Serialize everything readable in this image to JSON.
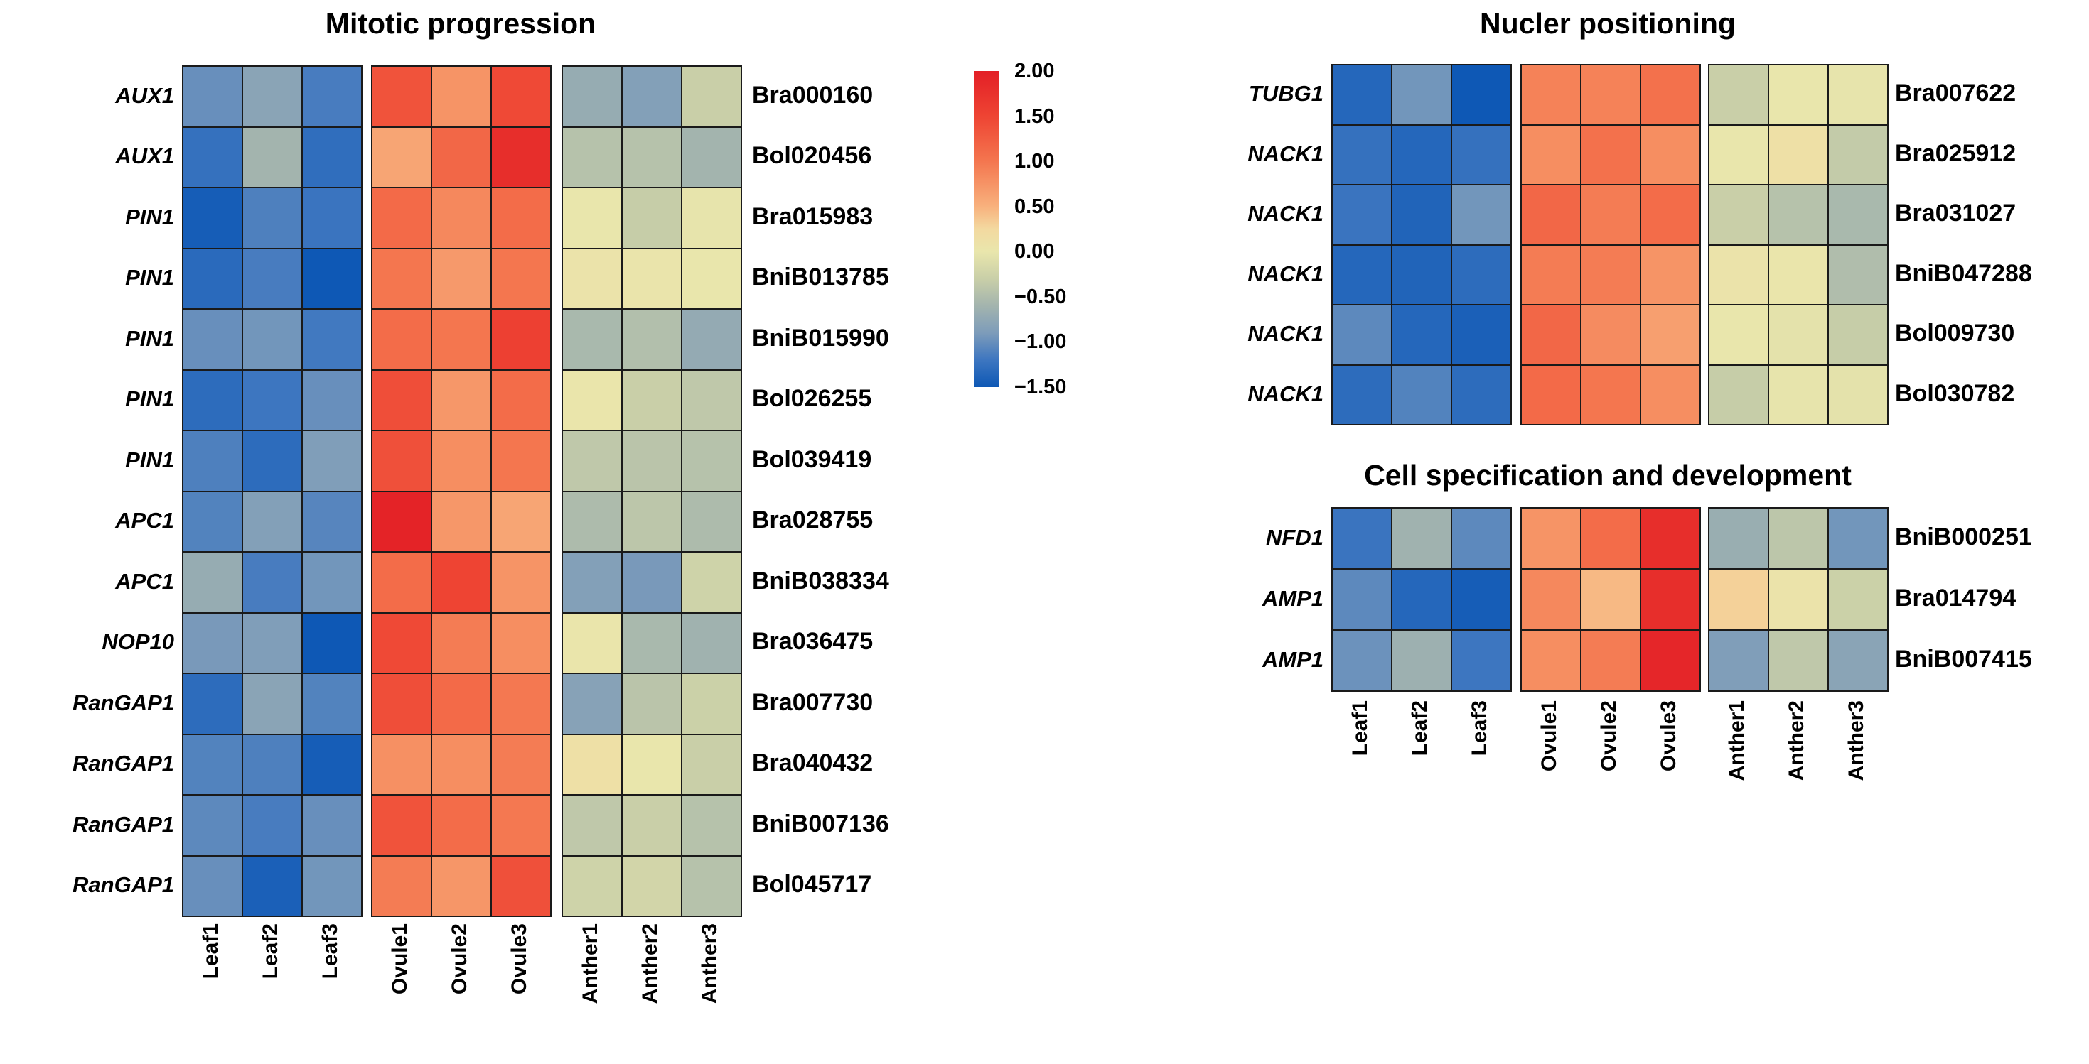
{
  "figure": {
    "background": "#ffffff",
    "text_color": "#000000",
    "grid_line_color": "#1a1a1a"
  },
  "colorbar": {
    "min": -1.5,
    "max": 2.0,
    "ticks": [
      "2.00",
      "1.50",
      "1.00",
      "0.50",
      "0.00",
      "−0.50",
      "−1.00",
      "−1.50"
    ]
  },
  "colormap_stops": [
    {
      "v": -1.5,
      "c": "#0e58b5"
    },
    {
      "v": -1.2,
      "c": "#3d76c0"
    },
    {
      "v": -0.9,
      "c": "#7d9cba"
    },
    {
      "v": -0.6,
      "c": "#a3b4ae"
    },
    {
      "v": -0.3,
      "c": "#c9cfa8"
    },
    {
      "v": 0.0,
      "c": "#e9e6ac"
    },
    {
      "v": 0.25,
      "c": "#f3d9a0"
    },
    {
      "v": 0.5,
      "c": "#f8b17d"
    },
    {
      "v": 1.0,
      "c": "#f4764f"
    },
    {
      "v": 1.5,
      "c": "#ee4433"
    },
    {
      "v": 2.0,
      "c": "#e31f26"
    }
  ],
  "chart_data": [
    {
      "type": "heatmap",
      "title": "Mitotic progression",
      "columns": [
        "Leaf1",
        "Leaf2",
        "Leaf3",
        "Ovule1",
        "Ovule2",
        "Ovule3",
        "Anther1",
        "Anther2",
        "Anther3"
      ],
      "column_groups": [
        "Leaf",
        "Ovule",
        "Anther"
      ],
      "value_range": [
        -1.5,
        2.0
      ],
      "rows": [
        {
          "gene": "AUX1",
          "id": "Bra000160",
          "values": [
            -1.0,
            -0.8,
            -1.15,
            1.35,
            0.75,
            1.45,
            -0.7,
            -0.85,
            -0.3
          ]
        },
        {
          "gene": "AUX1",
          "id": "Bol020456",
          "values": [
            -1.25,
            -0.6,
            -1.28,
            0.6,
            1.15,
            1.8,
            -0.45,
            -0.45,
            -0.6
          ]
        },
        {
          "gene": "PIN1",
          "id": "Bra015983",
          "values": [
            -1.45,
            -1.12,
            -1.22,
            1.12,
            0.85,
            1.1,
            0.0,
            -0.32,
            -0.02
          ]
        },
        {
          "gene": "PIN1",
          "id": "BniB013785",
          "values": [
            -1.32,
            -1.15,
            -1.5,
            1.0,
            0.7,
            1.0,
            0.05,
            0.03,
            0.0
          ]
        },
        {
          "gene": "PIN1",
          "id": "BniB015990",
          "values": [
            -1.0,
            -0.95,
            -1.18,
            1.1,
            1.0,
            1.55,
            -0.55,
            -0.48,
            -0.72
          ]
        },
        {
          "gene": "PIN1",
          "id": "Bol026255",
          "values": [
            -1.3,
            -1.2,
            -1.0,
            1.4,
            0.72,
            1.1,
            0.02,
            -0.3,
            -0.38
          ]
        },
        {
          "gene": "PIN1",
          "id": "Bol039419",
          "values": [
            -1.12,
            -1.3,
            -0.88,
            1.38,
            0.8,
            1.0,
            -0.38,
            -0.42,
            -0.45
          ]
        },
        {
          "gene": "APC1",
          "id": "Bra028755",
          "values": [
            -1.1,
            -0.85,
            -1.08,
            1.95,
            0.72,
            0.6,
            -0.52,
            -0.4,
            -0.52
          ]
        },
        {
          "gene": "APC1",
          "id": "BniB038334",
          "values": [
            -0.7,
            -1.15,
            -0.95,
            1.1,
            1.5,
            0.75,
            -0.85,
            -0.92,
            -0.25
          ]
        },
        {
          "gene": "NOP10",
          "id": "Bra036475",
          "values": [
            -0.92,
            -0.88,
            -1.5,
            1.45,
            0.95,
            0.8,
            0.02,
            -0.55,
            -0.62
          ]
        },
        {
          "gene": "RanGAP1",
          "id": "Bra007730",
          "values": [
            -1.3,
            -0.8,
            -1.1,
            1.4,
            1.12,
            0.98,
            -0.82,
            -0.42,
            -0.28
          ]
        },
        {
          "gene": "RanGAP1",
          "id": "Bra040432",
          "values": [
            -1.1,
            -1.12,
            -1.45,
            0.78,
            0.8,
            0.95,
            0.12,
            0.0,
            -0.3
          ]
        },
        {
          "gene": "RanGAP1",
          "id": "BniB007136",
          "values": [
            -1.05,
            -1.15,
            -1.0,
            1.35,
            1.1,
            0.98,
            -0.38,
            -0.3,
            -0.45
          ]
        },
        {
          "gene": "RanGAP1",
          "id": "Bol045717",
          "values": [
            -1.0,
            -1.42,
            -0.95,
            0.95,
            0.73,
            1.38,
            -0.25,
            -0.22,
            -0.45
          ]
        }
      ]
    },
    {
      "type": "heatmap",
      "title": "Nucler positioning",
      "columns": [
        "Leaf1",
        "Leaf2",
        "Leaf3",
        "Ovule1",
        "Ovule2",
        "Ovule3",
        "Anther1",
        "Anther2",
        "Anther3"
      ],
      "column_groups": [
        "Leaf",
        "Ovule",
        "Anther"
      ],
      "value_range": [
        -1.5,
        2.0
      ],
      "rows": [
        {
          "gene": "TUBG1",
          "id": "Bra007622",
          "values": [
            -1.35,
            -0.95,
            -1.5,
            0.9,
            0.9,
            1.05,
            -0.3,
            0.0,
            -0.02
          ]
        },
        {
          "gene": "NACK1",
          "id": "Bra025912",
          "values": [
            -1.25,
            -1.35,
            -1.25,
            0.8,
            1.05,
            0.8,
            0.0,
            0.12,
            -0.35
          ]
        },
        {
          "gene": "NACK1",
          "id": "Bra031027",
          "values": [
            -1.22,
            -1.38,
            -0.95,
            1.15,
            0.95,
            1.1,
            -0.3,
            -0.45,
            -0.55
          ]
        },
        {
          "gene": "NACK1",
          "id": "BniB047288",
          "values": [
            -1.35,
            -1.38,
            -1.3,
            0.95,
            0.95,
            0.75,
            0.05,
            0.02,
            -0.5
          ]
        },
        {
          "gene": "NACK1",
          "id": "Bol009730",
          "values": [
            -1.05,
            -1.35,
            -1.42,
            1.15,
            0.82,
            0.65,
            0.0,
            -0.05,
            -0.32
          ]
        },
        {
          "gene": "NACK1",
          "id": "Bol030782",
          "values": [
            -1.3,
            -1.1,
            -1.3,
            1.12,
            1.0,
            0.8,
            -0.32,
            -0.02,
            -0.05
          ]
        }
      ]
    },
    {
      "type": "heatmap",
      "title": "Cell specification and development",
      "columns": [
        "Leaf1",
        "Leaf2",
        "Leaf3",
        "Ovule1",
        "Ovule2",
        "Ovule3",
        "Anther1",
        "Anther2",
        "Anther3"
      ],
      "column_groups": [
        "Leaf",
        "Ovule",
        "Anther"
      ],
      "value_range": [
        -1.5,
        2.0
      ],
      "rows": [
        {
          "gene": "NFD1",
          "id": "BniB000251",
          "values": [
            -1.22,
            -0.62,
            -1.05,
            0.75,
            1.1,
            1.8,
            -0.68,
            -0.4,
            -0.95
          ]
        },
        {
          "gene": "AMP1",
          "id": "Bra014794",
          "values": [
            -1.05,
            -1.35,
            -1.45,
            0.85,
            0.45,
            1.8,
            0.3,
            0.05,
            -0.28
          ]
        },
        {
          "gene": "AMP1",
          "id": "BniB007415",
          "values": [
            -0.98,
            -0.65,
            -1.2,
            0.8,
            0.95,
            1.9,
            -0.88,
            -0.38,
            -0.8
          ]
        }
      ]
    }
  ]
}
